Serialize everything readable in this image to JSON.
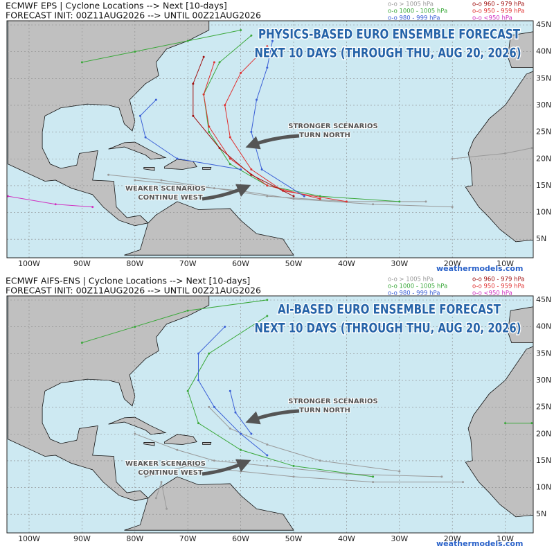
{
  "panels": [
    {
      "header": [
        "ECMWF EPS | Cyclone Locations --> Next [10-days]",
        "FORECAST INIT: 00Z11AUG2026 --> UNTIL 00Z21AUG2026"
      ],
      "legend": [
        {
          "text": "o-o > 1005 hPa",
          "color": "#999999"
        },
        {
          "text": "o-o 1000 - 1005 hPa",
          "color": "#3aa83a"
        },
        {
          "text": "o-o 980 - 999 hPa",
          "color": "#3a5fd6"
        },
        {
          "text": "o-o 960 - 979 hPa",
          "color": "#a01010"
        },
        {
          "text": "o-o 950 - 959 hPa",
          "color": "#e03030"
        },
        {
          "text": "o-o <950 hPa",
          "color": "#d030c0"
        }
      ],
      "title": [
        "PHYSICS-BASED EURO ENSEMBLE FORECAST",
        "NEXT 10 DAYS (THROUGH THU, AUG 20, 2026)"
      ],
      "annotations": [
        [
          "STRONGER SCENARIOS",
          "TURN NORTH"
        ],
        [
          "WEAKER SCENARIOS",
          "CONTINUE WEST"
        ]
      ],
      "lon_labels": [
        "100W",
        "90W",
        "80W",
        "70W",
        "60W",
        "50W",
        "40W",
        "30W",
        "20W",
        "10W"
      ],
      "lat_labels": [
        "45N",
        "40N",
        "35N",
        "30N",
        "25N",
        "20N",
        "15N",
        "10N",
        "5N"
      ],
      "watermark": "weathermodels.com"
    },
    {
      "header": [
        "ECMWF AIFS-ENS | Cyclone Locations --> Next [10-days]",
        "FORECAST INIT: 00Z11AUG2026 --> UNTIL 00Z21AUG2026"
      ],
      "legend": [
        {
          "text": "o-o > 1005 hPa",
          "color": "#999999"
        },
        {
          "text": "o-o 1000 - 1005 hPa",
          "color": "#3aa83a"
        },
        {
          "text": "o-o 980 - 999 hPa",
          "color": "#3a5fd6"
        },
        {
          "text": "o-o 960 - 979 hPa",
          "color": "#a01010"
        },
        {
          "text": "o-o 950 - 959 hPa",
          "color": "#e03030"
        },
        {
          "text": "o-o <950 hPa",
          "color": "#d030c0"
        }
      ],
      "title": [
        "AI-BASED EURO ENSEMBLE FORECAST",
        "NEXT 10 DAYS (THROUGH THU, AUG 20, 2026)"
      ],
      "annotations": [
        [
          "STRONGER SCENARIOS",
          "TURN NORTH"
        ],
        [
          "WEAKER SCENARIOS",
          "CONTINUE WEST"
        ]
      ],
      "lon_labels": [
        "100W",
        "90W",
        "80W",
        "70W",
        "60W",
        "50W",
        "40W",
        "30W",
        "20W",
        "10W"
      ],
      "lat_labels": [
        "45N",
        "40N",
        "35N",
        "30N",
        "25N",
        "20N",
        "15N",
        "10N",
        "5N"
      ],
      "watermark": "weathermodels.com"
    }
  ]
}
